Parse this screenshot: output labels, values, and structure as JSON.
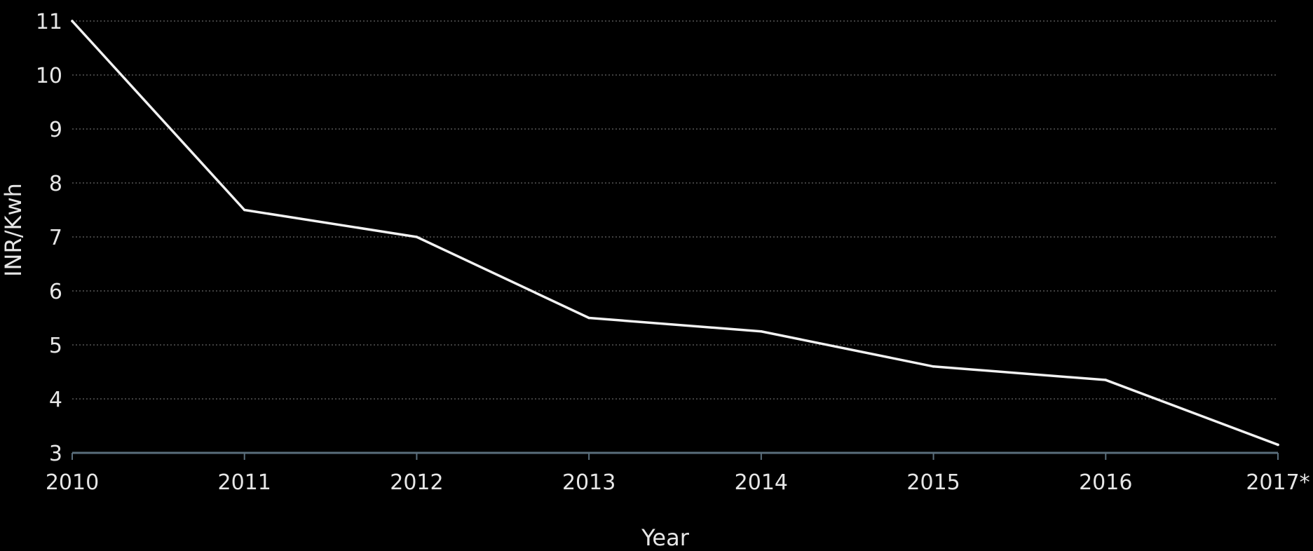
{
  "chart_data": {
    "type": "line",
    "title": "",
    "xlabel": "Year",
    "ylabel": "INR/Kwh",
    "categories": [
      "2010",
      "2011",
      "2012",
      "2013",
      "2014",
      "2015",
      "2016",
      "2017*"
    ],
    "series": [
      {
        "values": [
          11.0,
          7.5,
          7.0,
          5.5,
          5.25,
          4.6,
          4.35,
          3.15
        ]
      }
    ],
    "ylim": [
      3,
      11
    ],
    "yticks": [
      3,
      4,
      5,
      6,
      7,
      8,
      9,
      10,
      11
    ],
    "grid": true,
    "legend": "none",
    "colors": {
      "background": "#000000",
      "line": "#f2f2f2",
      "grid": "#555555",
      "axis": "#5a6e7c",
      "text": "#e6e6e6"
    }
  }
}
